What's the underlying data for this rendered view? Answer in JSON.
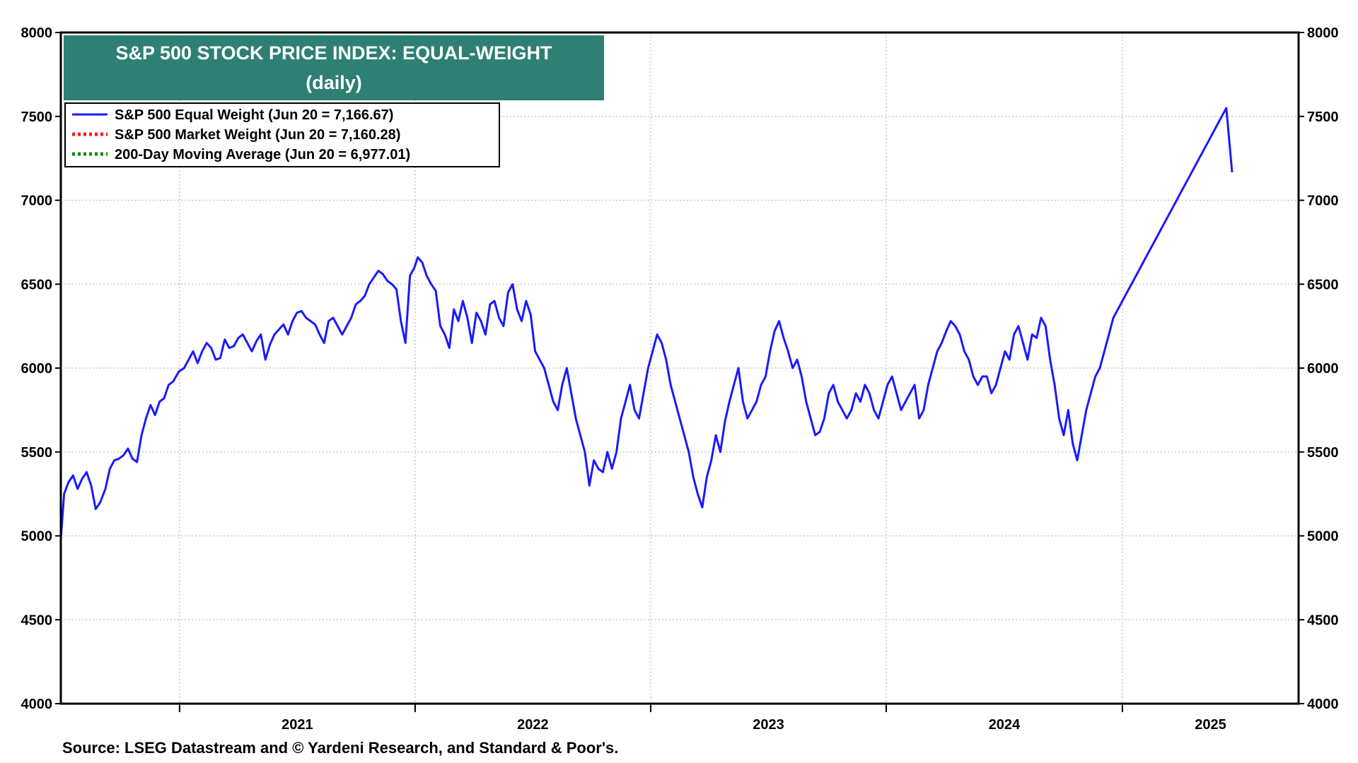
{
  "chart_data": {
    "type": "line",
    "title": "S&P 500 STOCK PRICE INDEX: EQUAL-WEIGHT",
    "subtitle": "(daily)",
    "title_bg": "#2e7f74",
    "ylim": [
      4000,
      8000
    ],
    "y_ticks": [
      "4000",
      "4500",
      "5000",
      "5500",
      "6000",
      "6500",
      "7000",
      "7500",
      "8000"
    ],
    "y_ticks_right": [
      "4000",
      "4500",
      "5000",
      "5500",
      "6000",
      "6500",
      "7000",
      "7500",
      "8000"
    ],
    "x_range": [
      "2020-07-01",
      "2025-10-01"
    ],
    "x_ticks": [
      {
        "label": "2021",
        "start": "2021-01-01",
        "end": "2022-01-01"
      },
      {
        "label": "2022",
        "start": "2022-01-01",
        "end": "2023-01-01"
      },
      {
        "label": "2023",
        "start": "2023-01-01",
        "end": "2024-01-01"
      },
      {
        "label": "2024",
        "start": "2024-01-01",
        "end": "2025-01-01"
      },
      {
        "label": "2025",
        "start": "2025-01-01",
        "end": "2025-10-01"
      }
    ],
    "grid": true,
    "legend_position": "top-left",
    "source": "Source: LSEG Datastream and © Yardeni Research, and Standard & Poor's.",
    "series": [
      {
        "name": "S&P 500 Equal Weight (Jun 20 = 7,166.67)",
        "color": "#1a1aff",
        "style": "solid",
        "points": [
          [
            "2020-07-01",
            4980
          ],
          [
            "2020-07-06",
            5250
          ],
          [
            "2020-07-13",
            5320
          ],
          [
            "2020-07-20",
            5360
          ],
          [
            "2020-07-27",
            5280
          ],
          [
            "2020-08-03",
            5340
          ],
          [
            "2020-08-10",
            5380
          ],
          [
            "2020-08-17",
            5300
          ],
          [
            "2020-08-24",
            5160
          ],
          [
            "2020-08-31",
            5200
          ],
          [
            "2020-09-08",
            5280
          ],
          [
            "2020-09-15",
            5400
          ],
          [
            "2020-09-22",
            5450
          ],
          [
            "2020-09-29",
            5460
          ],
          [
            "2020-10-06",
            5480
          ],
          [
            "2020-10-13",
            5520
          ],
          [
            "2020-10-20",
            5460
          ],
          [
            "2020-10-27",
            5440
          ],
          [
            "2020-11-03",
            5600
          ],
          [
            "2020-11-10",
            5700
          ],
          [
            "2020-11-17",
            5780
          ],
          [
            "2020-11-24",
            5720
          ],
          [
            "2020-12-01",
            5800
          ],
          [
            "2020-12-08",
            5820
          ],
          [
            "2020-12-15",
            5900
          ],
          [
            "2020-12-22",
            5920
          ],
          [
            "2020-12-31",
            5980
          ],
          [
            "2021-01-08",
            6000
          ],
          [
            "2021-01-15",
            6050
          ],
          [
            "2021-01-22",
            6100
          ],
          [
            "2021-01-29",
            6030
          ],
          [
            "2021-02-05",
            6100
          ],
          [
            "2021-02-12",
            6150
          ],
          [
            "2021-02-19",
            6120
          ],
          [
            "2021-02-26",
            6050
          ],
          [
            "2021-03-05",
            6060
          ],
          [
            "2021-03-12",
            6170
          ],
          [
            "2021-03-19",
            6120
          ],
          [
            "2021-03-26",
            6130
          ],
          [
            "2021-04-02",
            6180
          ],
          [
            "2021-04-09",
            6200
          ],
          [
            "2021-04-16",
            6150
          ],
          [
            "2021-04-23",
            6100
          ],
          [
            "2021-04-30",
            6160
          ],
          [
            "2021-05-07",
            6200
          ],
          [
            "2021-05-14",
            6050
          ],
          [
            "2021-05-21",
            6140
          ],
          [
            "2021-05-28",
            6200
          ],
          [
            "2021-06-04",
            6230
          ],
          [
            "2021-06-11",
            6260
          ],
          [
            "2021-06-18",
            6200
          ],
          [
            "2021-06-25",
            6280
          ],
          [
            "2021-07-02",
            6330
          ],
          [
            "2021-07-09",
            6340
          ],
          [
            "2021-07-16",
            6300
          ],
          [
            "2021-07-23",
            6280
          ],
          [
            "2021-07-30",
            6260
          ],
          [
            "2021-08-06",
            6200
          ],
          [
            "2021-08-13",
            6150
          ],
          [
            "2021-08-20",
            6280
          ],
          [
            "2021-08-27",
            6300
          ],
          [
            "2021-09-03",
            6250
          ],
          [
            "2021-09-10",
            6200
          ],
          [
            "2021-09-17",
            6250
          ],
          [
            "2021-09-24",
            6300
          ],
          [
            "2021-10-01",
            6380
          ],
          [
            "2021-10-08",
            6400
          ],
          [
            "2021-10-15",
            6430
          ],
          [
            "2021-10-22",
            6500
          ],
          [
            "2021-10-29",
            6540
          ],
          [
            "2021-11-05",
            6580
          ],
          [
            "2021-11-12",
            6560
          ],
          [
            "2021-11-19",
            6520
          ],
          [
            "2021-11-26",
            6500
          ],
          [
            "2021-12-03",
            6470
          ],
          [
            "2021-12-10",
            6280
          ],
          [
            "2021-12-17",
            6150
          ],
          [
            "2021-12-24",
            6550
          ],
          [
            "2021-12-31",
            6600
          ],
          [
            "2022-01-05",
            6660
          ],
          [
            "2022-01-12",
            6630
          ],
          [
            "2022-01-19",
            6550
          ],
          [
            "2022-01-26",
            6500
          ],
          [
            "2022-02-02",
            6460
          ],
          [
            "2022-02-09",
            6250
          ],
          [
            "2022-02-16",
            6200
          ],
          [
            "2022-02-23",
            6120
          ],
          [
            "2022-03-02",
            6350
          ],
          [
            "2022-03-09",
            6280
          ],
          [
            "2022-03-16",
            6400
          ],
          [
            "2022-03-23",
            6300
          ],
          [
            "2022-03-30",
            6150
          ],
          [
            "2022-04-06",
            6330
          ],
          [
            "2022-04-13",
            6280
          ],
          [
            "2022-04-20",
            6200
          ],
          [
            "2022-04-27",
            6380
          ],
          [
            "2022-05-04",
            6400
          ],
          [
            "2022-05-11",
            6300
          ],
          [
            "2022-05-18",
            6250
          ],
          [
            "2022-05-25",
            6450
          ],
          [
            "2022-06-01",
            6500
          ],
          [
            "2022-06-08",
            6350
          ],
          [
            "2022-06-15",
            6280
          ],
          [
            "2022-06-22",
            6400
          ],
          [
            "2022-06-29",
            6320
          ],
          [
            "2022-07-06",
            6100
          ],
          [
            "2022-07-13",
            6050
          ],
          [
            "2022-07-20",
            6000
          ],
          [
            "2022-07-27",
            5900
          ],
          [
            "2022-08-03",
            5800
          ],
          [
            "2022-08-10",
            5750
          ],
          [
            "2022-08-17",
            5900
          ],
          [
            "2022-08-24",
            6000
          ],
          [
            "2022-08-31",
            5850
          ],
          [
            "2022-09-07",
            5700
          ],
          [
            "2022-09-14",
            5600
          ],
          [
            "2022-09-21",
            5500
          ],
          [
            "2022-09-28",
            5300
          ],
          [
            "2022-10-05",
            5450
          ],
          [
            "2022-10-12",
            5400
          ],
          [
            "2022-10-19",
            5380
          ],
          [
            "2022-10-26",
            5500
          ],
          [
            "2022-11-02",
            5400
          ],
          [
            "2022-11-09",
            5500
          ],
          [
            "2022-11-16",
            5700
          ],
          [
            "2022-11-23",
            5800
          ],
          [
            "2022-11-30",
            5900
          ],
          [
            "2022-12-07",
            5750
          ],
          [
            "2022-12-14",
            5700
          ],
          [
            "2022-12-21",
            5850
          ],
          [
            "2022-12-28",
            6000
          ],
          [
            "2023-01-04",
            6100
          ],
          [
            "2023-01-11",
            6200
          ],
          [
            "2023-01-18",
            6150
          ],
          [
            "2023-01-25",
            6050
          ],
          [
            "2023-02-01",
            5900
          ],
          [
            "2023-02-08",
            5800
          ],
          [
            "2023-02-15",
            5700
          ],
          [
            "2023-02-22",
            5600
          ],
          [
            "2023-03-01",
            5500
          ],
          [
            "2023-03-08",
            5350
          ],
          [
            "2023-03-15",
            5250
          ],
          [
            "2023-03-22",
            5170
          ],
          [
            "2023-03-29",
            5350
          ],
          [
            "2023-04-05",
            5450
          ],
          [
            "2023-04-12",
            5600
          ],
          [
            "2023-04-19",
            5500
          ],
          [
            "2023-04-26",
            5680
          ],
          [
            "2023-05-03",
            5800
          ],
          [
            "2023-05-10",
            5900
          ],
          [
            "2023-05-17",
            6000
          ],
          [
            "2023-05-24",
            5800
          ],
          [
            "2023-05-31",
            5700
          ],
          [
            "2023-06-07",
            5750
          ],
          [
            "2023-06-14",
            5800
          ],
          [
            "2023-06-21",
            5900
          ],
          [
            "2023-06-28",
            5950
          ],
          [
            "2023-07-05",
            6100
          ],
          [
            "2023-07-12",
            6220
          ],
          [
            "2023-07-19",
            6280
          ],
          [
            "2023-07-26",
            6180
          ],
          [
            "2023-08-02",
            6100
          ],
          [
            "2023-08-09",
            6000
          ],
          [
            "2023-08-16",
            6050
          ],
          [
            "2023-08-23",
            5950
          ],
          [
            "2023-08-30",
            5800
          ],
          [
            "2023-09-06",
            5700
          ],
          [
            "2023-09-13",
            5600
          ],
          [
            "2023-09-20",
            5620
          ],
          [
            "2023-09-27",
            5700
          ],
          [
            "2023-10-04",
            5850
          ],
          [
            "2023-10-11",
            5900
          ],
          [
            "2023-10-18",
            5800
          ],
          [
            "2023-10-25",
            5750
          ],
          [
            "2023-11-01",
            5700
          ],
          [
            "2023-11-08",
            5750
          ],
          [
            "2023-11-15",
            5850
          ],
          [
            "2023-11-22",
            5800
          ],
          [
            "2023-11-29",
            5900
          ],
          [
            "2023-12-06",
            5850
          ],
          [
            "2023-12-13",
            5750
          ],
          [
            "2023-12-20",
            5700
          ],
          [
            "2023-12-27",
            5800
          ],
          [
            "2024-01-03",
            5900
          ],
          [
            "2024-01-10",
            5950
          ],
          [
            "2024-01-17",
            5850
          ],
          [
            "2024-01-24",
            5750
          ],
          [
            "2024-01-31",
            5800
          ],
          [
            "2024-02-07",
            5850
          ],
          [
            "2024-02-14",
            5900
          ],
          [
            "2024-02-21",
            5700
          ],
          [
            "2024-02-28",
            5750
          ],
          [
            "2024-03-06",
            5900
          ],
          [
            "2024-03-13",
            6000
          ],
          [
            "2024-03-20",
            6100
          ],
          [
            "2024-03-27",
            6150
          ],
          [
            "2024-04-03",
            6220
          ],
          [
            "2024-04-10",
            6280
          ],
          [
            "2024-04-17",
            6250
          ],
          [
            "2024-04-24",
            6200
          ],
          [
            "2024-05-01",
            6100
          ],
          [
            "2024-05-08",
            6050
          ],
          [
            "2024-05-15",
            5950
          ],
          [
            "2024-05-22",
            5900
          ],
          [
            "2024-05-29",
            5950
          ],
          [
            "2024-06-05",
            5950
          ],
          [
            "2024-06-12",
            5850
          ],
          [
            "2024-06-19",
            5900
          ],
          [
            "2024-06-26",
            6000
          ],
          [
            "2024-07-03",
            6100
          ],
          [
            "2024-07-10",
            6050
          ],
          [
            "2024-07-17",
            6200
          ],
          [
            "2024-07-24",
            6250
          ],
          [
            "2024-07-31",
            6150
          ],
          [
            "2024-08-07",
            6050
          ],
          [
            "2024-08-14",
            6200
          ],
          [
            "2024-08-21",
            6180
          ],
          [
            "2024-08-28",
            6300
          ],
          [
            "2024-09-04",
            6250
          ],
          [
            "2024-09-11",
            6050
          ],
          [
            "2024-09-18",
            5900
          ],
          [
            "2024-09-25",
            5700
          ],
          [
            "2024-10-02",
            5600
          ],
          [
            "2024-10-09",
            5750
          ],
          [
            "2024-10-16",
            5550
          ],
          [
            "2024-10-23",
            5450
          ],
          [
            "2024-10-30",
            5600
          ],
          [
            "2024-11-06",
            5750
          ],
          [
            "2024-11-13",
            5850
          ],
          [
            "2024-11-20",
            5950
          ],
          [
            "2024-11-27",
            6000
          ],
          [
            "2024-12-04",
            6100
          ],
          [
            "2024-12-11",
            6200
          ],
          [
            "2024-12-18",
            6300
          ],
          [
            "2024-12-25",
            6350
          ],
          [
            "2025-01-01",
            6400
          ],
          [
            "2025-01-08",
            6450
          ],
          [
            "2025-01-15",
            6500
          ],
          [
            "2025-01-22",
            6550
          ],
          [
            "2025-01-29",
            6600
          ],
          [
            "2025-02-05",
            6650
          ],
          [
            "2025-02-12",
            6700
          ],
          [
            "2025-02-19",
            6750
          ],
          [
            "2025-02-26",
            6800
          ],
          [
            "2025-03-05",
            6850
          ],
          [
            "2025-03-12",
            6900
          ],
          [
            "2025-03-19",
            6950
          ],
          [
            "2025-03-26",
            7000
          ],
          [
            "2025-04-02",
            7050
          ],
          [
            "2025-04-09",
            7100
          ],
          [
            "2025-04-16",
            7150
          ],
          [
            "2025-04-23",
            7200
          ],
          [
            "2025-04-30",
            7250
          ],
          [
            "2025-05-07",
            7300
          ],
          [
            "2025-05-14",
            7350
          ],
          [
            "2025-05-21",
            7400
          ],
          [
            "2025-05-28",
            7450
          ],
          [
            "2025-06-04",
            7500
          ],
          [
            "2025-06-11",
            7550
          ],
          [
            "2025-06-20",
            7166.67
          ]
        ]
      },
      {
        "name": "S&P 500 Market Weight (Jun 20 = 7,160.28)",
        "color": "#ff1a1a",
        "style": "dotted",
        "points": []
      },
      {
        "name": "200-Day Moving Average (Jun 20 = 6,977.01)",
        "color": "#138a13",
        "style": "dotted",
        "points": []
      }
    ]
  }
}
